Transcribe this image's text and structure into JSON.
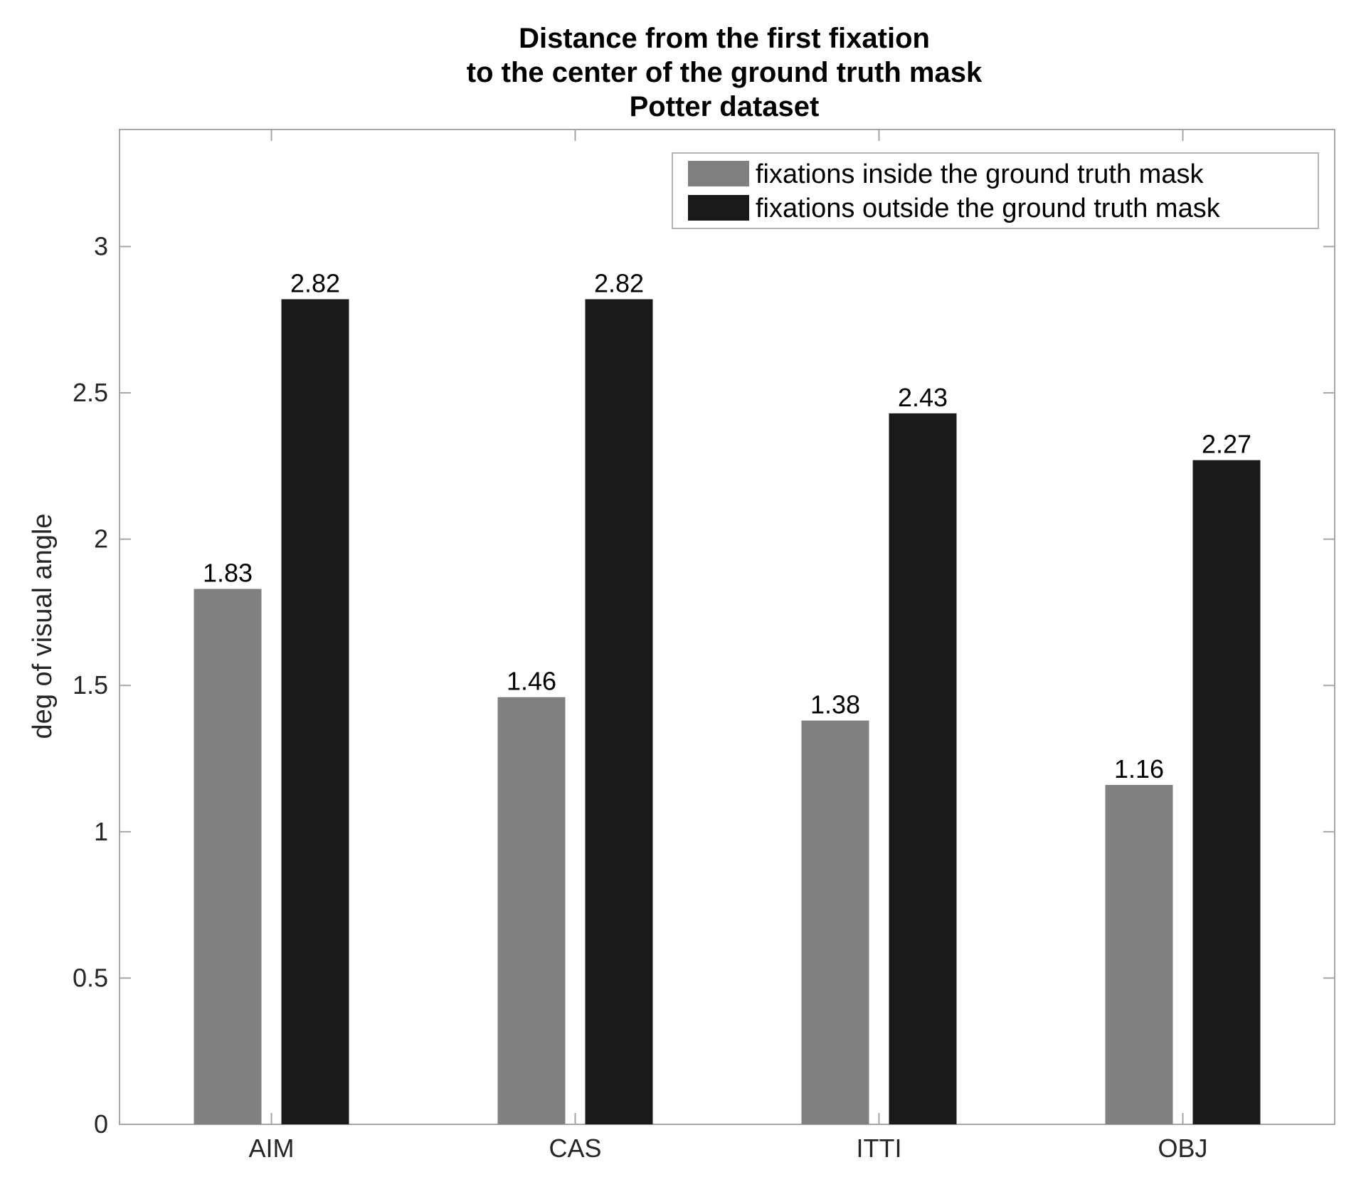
{
  "chart_data": {
    "type": "bar",
    "title": [
      "Distance from the first fixation",
      "to the center of the ground truth mask",
      "Potter dataset"
    ],
    "xlabel": "",
    "ylabel": "deg of visual angle",
    "categories": [
      "AIM",
      "CAS",
      "ITTI",
      "OBJ"
    ],
    "series": [
      {
        "name": "fixations inside the ground truth mask",
        "color": "#808080",
        "values": [
          1.83,
          1.46,
          1.38,
          1.16
        ],
        "labels": [
          "1.83",
          "1.46",
          "1.38",
          "1.16"
        ]
      },
      {
        "name": "fixations outside the ground truth mask",
        "color": "#1a1a1a",
        "values": [
          2.82,
          2.82,
          2.43,
          2.27
        ],
        "labels": [
          "2.82",
          "2.82",
          "2.43",
          "2.27"
        ]
      }
    ],
    "ylim": [
      0,
      3.4
    ],
    "yticks": [
      0,
      0.5,
      1,
      1.5,
      2,
      2.5,
      3
    ],
    "ytick_labels": [
      "0",
      "0.5",
      "1",
      "1.5",
      "2",
      "2.5",
      "3"
    ],
    "grid": false,
    "legend_position": "top-right"
  }
}
